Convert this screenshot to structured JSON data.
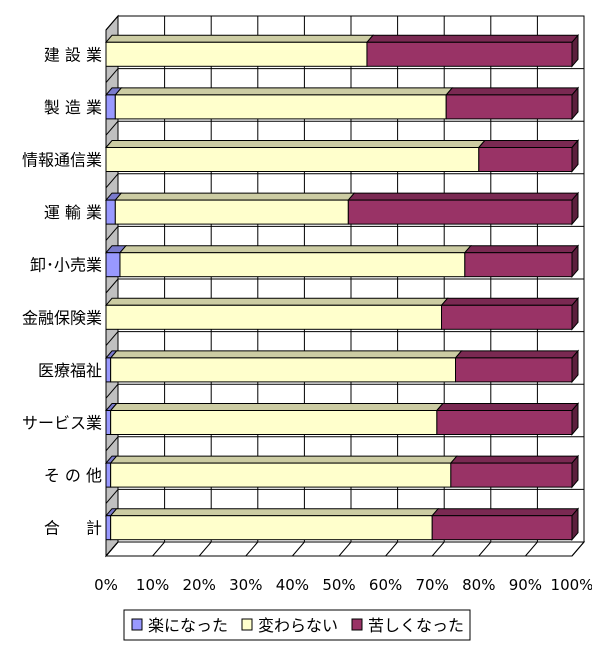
{
  "chart_data": {
    "type": "bar",
    "orientation": "horizontal",
    "stacked": "percent",
    "categories": [
      "建 設 業",
      "製 造 業",
      "情報通信業",
      "運 輸 業",
      "卸･小売業",
      "金融保険業",
      "医療福祉",
      "サービス業",
      "そ の 他",
      "合 　 計"
    ],
    "series": [
      {
        "name": "楽になった",
        "values": [
          0,
          2,
          0,
          2,
          3,
          0,
          1,
          1,
          1,
          1
        ]
      },
      {
        "name": "変わらない",
        "values": [
          56,
          71,
          80,
          50,
          74,
          72,
          74,
          70,
          73,
          69
        ]
      },
      {
        "name": "苦しくなった",
        "values": [
          44,
          27,
          20,
          48,
          23,
          28,
          25,
          29,
          26,
          30
        ]
      }
    ],
    "xlim": [
      0,
      100
    ],
    "xticks": [
      "0%",
      "10%",
      "20%",
      "30%",
      "40%",
      "50%",
      "60%",
      "70%",
      "80%",
      "90%",
      "100%"
    ],
    "grid": true,
    "legend": "bottom",
    "colors": {
      "楽になった": "#9999ff",
      "変わらない": "#ffffcc",
      "苦しくなった": "#993366",
      "gridline": "#000000",
      "wall": "#c0c0c0"
    }
  }
}
